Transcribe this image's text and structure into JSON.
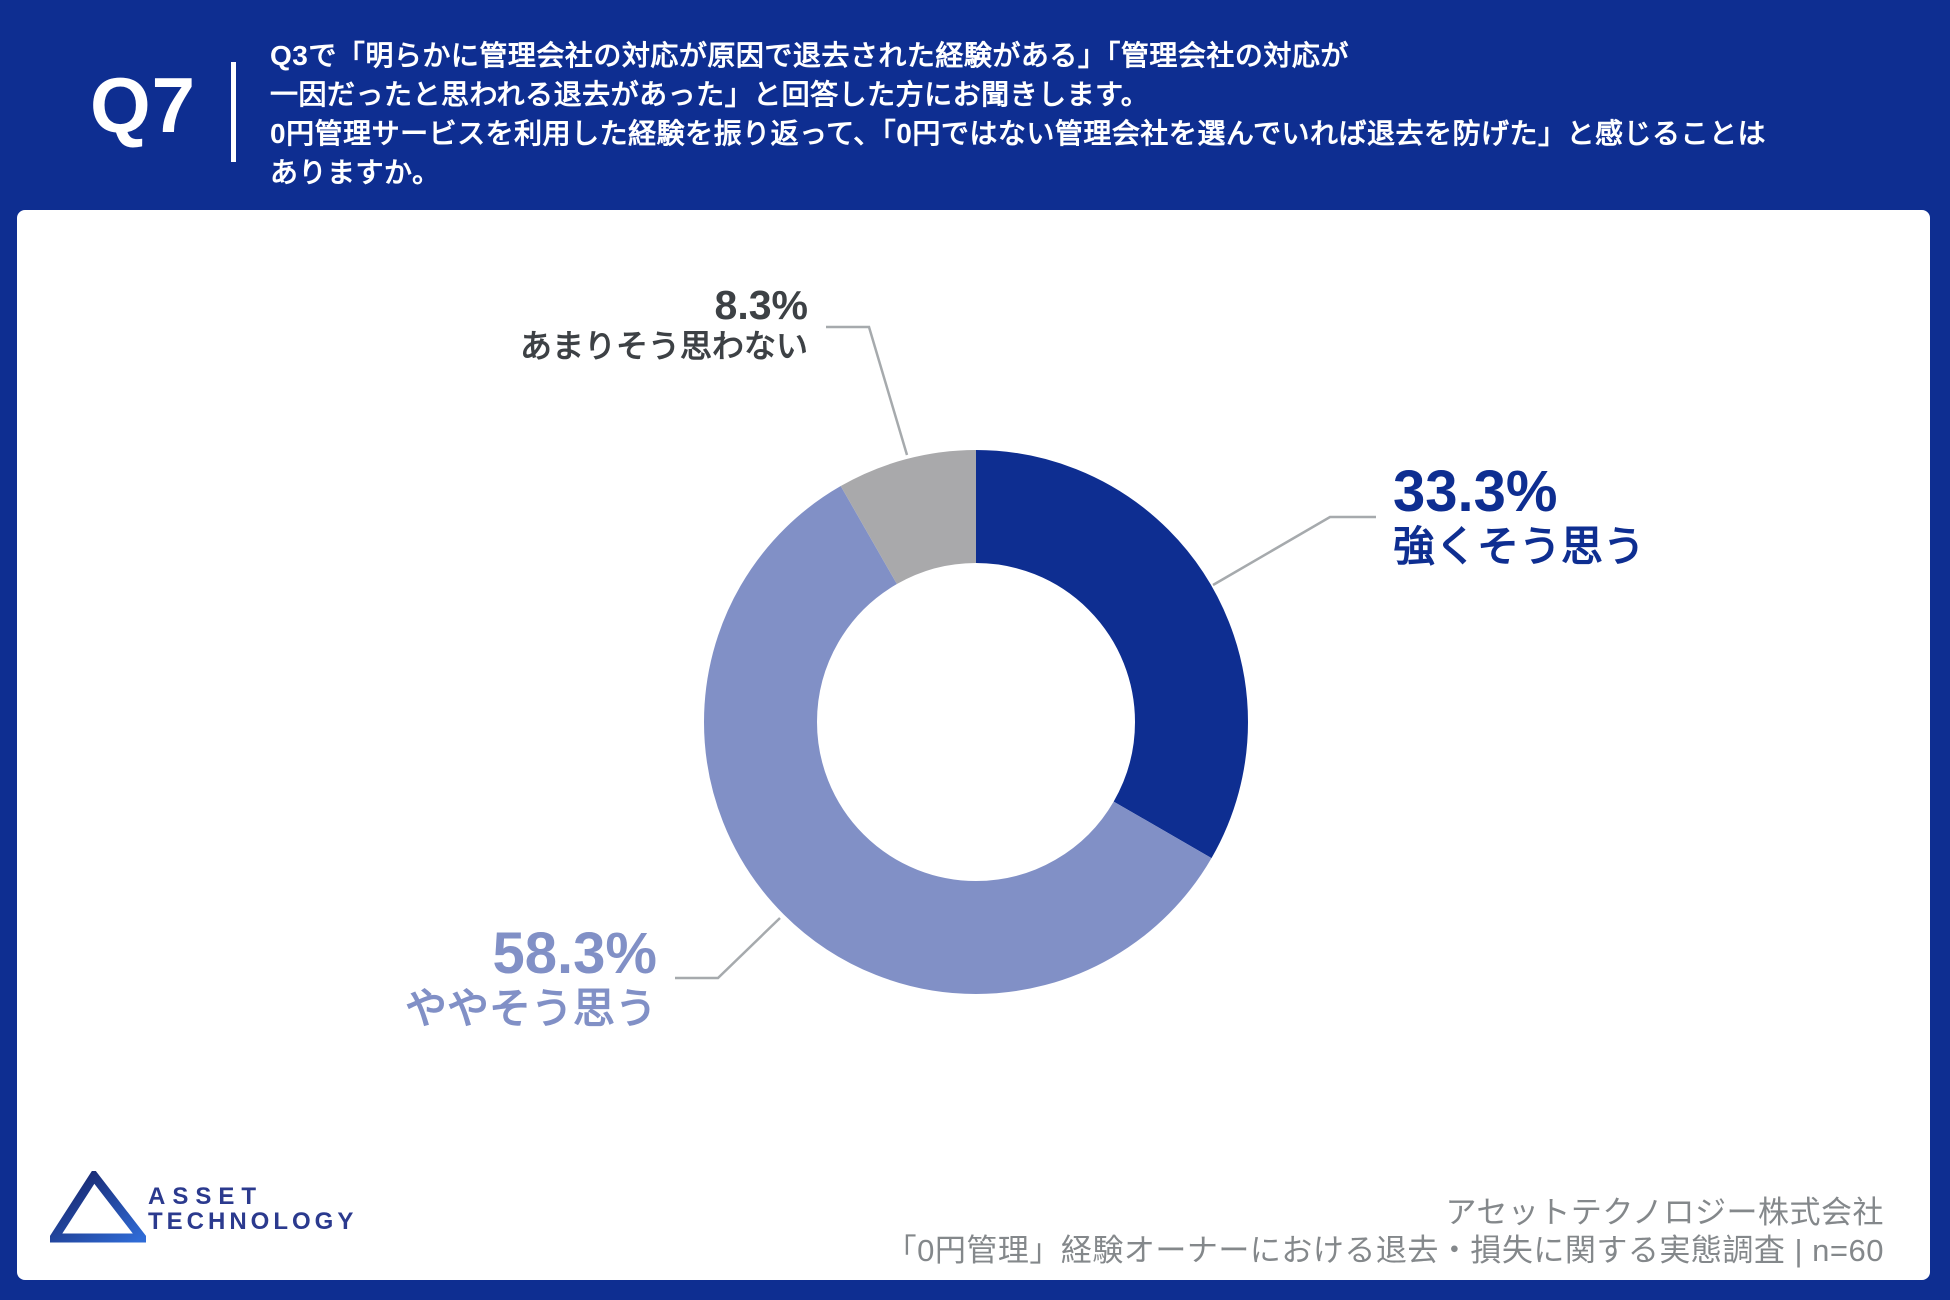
{
  "header": {
    "question_number": "Q7",
    "question_lines": [
      "Q3で「明らかに管理会社の対応が原因で退去された経験がある」「管理会社の対応が",
      "一因だったと思われる退去があった」と回答した方にお聞きします。",
      "0円管理サービスを利用した経験を振り返って、「0円ではない管理会社を選んでいれば退去を防げた」と感じることは",
      "ありますか。"
    ]
  },
  "chart_data": {
    "type": "pie",
    "subtype": "donut",
    "start_angle": "top",
    "direction": "clockwise",
    "categories": [
      "強くそう思う",
      "ややそう思う",
      "あまりそう思わない"
    ],
    "values": [
      33.3,
      58.3,
      8.3
    ],
    "unit": "%",
    "n": 60,
    "colors": [
      "#0e2e91",
      "#8190c6",
      "#a9a9ab"
    ],
    "labels": [
      {
        "percent": "33.3%",
        "text": "強くそう思う",
        "color": "#0e2e91"
      },
      {
        "percent": "58.3%",
        "text": "ややそう思う",
        "color": "#8190c6"
      },
      {
        "percent": "8.3%",
        "text": "あまりそう思わない",
        "color": "#3d4145"
      }
    ]
  },
  "footer": {
    "company": "アセットテクノロジー株式会社",
    "survey": "「0円管理」経験オーナーにおける退去・損失に関する実態調査 | n=60",
    "logo_line1": "ASSET",
    "logo_line2": "TECHNOLOGY"
  },
  "colors": {
    "background_navy": "#0e2e91",
    "panel_white": "#ffffff",
    "slice_strong": "#0e2e91",
    "slice_some": "#8190c6",
    "slice_not": "#a9a9ab",
    "callout_dark_gray": "#3d4145",
    "footer_gray": "#84888b",
    "leader_line_gray": "#a6aaad",
    "logo_navy": "#2b3a8e"
  }
}
